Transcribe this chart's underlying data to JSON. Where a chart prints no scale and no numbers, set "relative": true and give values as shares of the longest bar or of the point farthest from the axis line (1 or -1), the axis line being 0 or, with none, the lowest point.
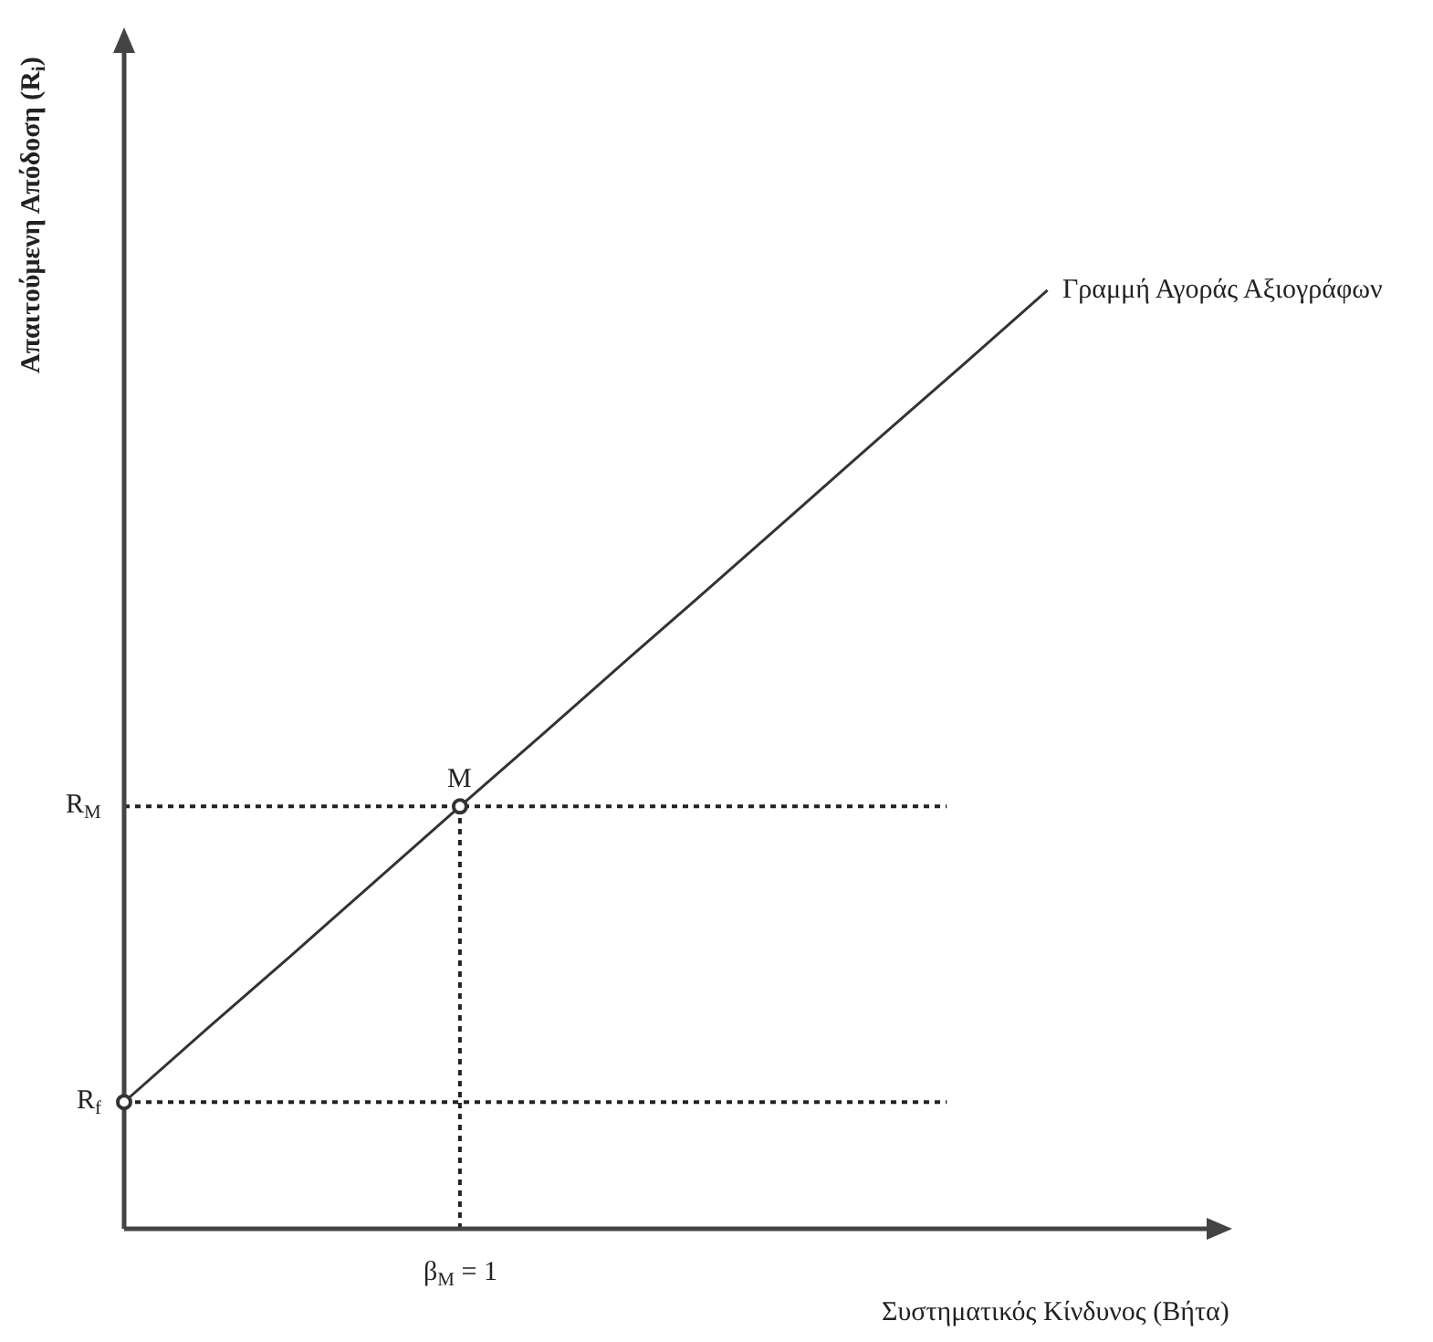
{
  "chart_data": {
    "type": "line",
    "relative": true,
    "xlabel": "Συστηματικός Κίνδυνος (Βήτα)",
    "ylabel": "Απαιτούμενη Απόδοση (R$_{i}$)",
    "categories": [
      null,
      null,
      null,
      null,
      null,
      null,
      null,
      null,
      null,
      null,
      null,
      null
    ],
    "series": [
      {
        "name": "Γραμμή Αγοράς Αξιογράφων",
        "color": "#333333",
        "values": [
          0.135,
          0.214,
          0.292,
          0.371,
          0.45,
          0.528,
          0.607,
          0.685,
          0.764,
          0.843,
          0.921,
          1
        ]
      }
    ],
    "ref_lines": [
      {
        "axis": "y",
        "value": 0.135,
        "label": "R$_{f}$",
        "line_style": "dotted",
        "color": "#222222"
      },
      {
        "axis": "y",
        "value": 0.45,
        "label": "R$_{M}$",
        "line_style": "dotted",
        "color": "#222222"
      },
      {
        "axis": "x",
        "label": "β$_{M}$ = 1",
        "line_style": "dotted",
        "color": "#222222"
      }
    ],
    "annotations": [
      {
        "text": "M",
        "y": 0.45
      }
    ],
    "line_style": "solid",
    "legend": false
  }
}
